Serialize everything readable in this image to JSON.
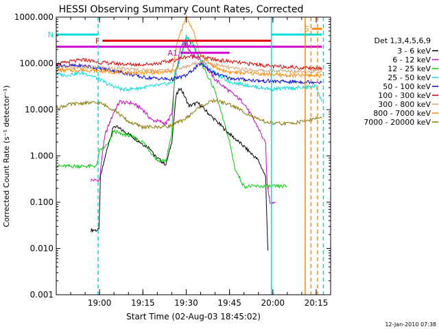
{
  "chart_data": {
    "type": "line",
    "title": "HESSI Observing Summary Count Rates, Corrected",
    "xlabel": "Start Time (02-Aug-03 18:45:02)",
    "ylabel": "Corrected Count Rate (s⁻¹ detector⁻¹)",
    "footer": "12-Jan-2010 07:38",
    "y_scale": "log",
    "ylim": [
      0.001,
      1000
    ],
    "xlim_minutes_from_start": [
      0,
      95
    ],
    "y_ticks": [
      "0.001",
      "0.010",
      "0.100",
      "1.000",
      "10.000",
      "100.000",
      "1000.000"
    ],
    "y_tick_values": [
      0.001,
      0.01,
      0.1,
      1,
      10,
      100,
      1000
    ],
    "x_ticks": [
      "19:00",
      "19:15",
      "19:30",
      "19:45",
      "20:00",
      "20:15"
    ],
    "x_tick_values": [
      15,
      30,
      45,
      60,
      75,
      90
    ],
    "legend_title": "Det 1,3,4,5,6,9",
    "legend_position": "right",
    "series": [
      {
        "name": "3 - 6 keV",
        "color": "#000000",
        "x": [
          12,
          14.8,
          15.3,
          18,
          20,
          25,
          30,
          33,
          34,
          35,
          38,
          40,
          41.5,
          43,
          46,
          49,
          55,
          60,
          65,
          70,
          72.5,
          73,
          73.3
        ],
        "y": [
          0.025,
          0.025,
          0.35,
          1.8,
          4.5,
          3.0,
          1.8,
          1.4,
          1.0,
          0.9,
          0.65,
          2.0,
          20,
          30,
          12,
          14,
          6,
          3.0,
          1.6,
          0.8,
          0.35,
          0.03,
          0.009
        ]
      },
      {
        "name": "6 - 12 keV",
        "color": "#cc00cc",
        "x": [
          12,
          15,
          16,
          17,
          20,
          22,
          24,
          26,
          28,
          30,
          33,
          36,
          38,
          40,
          41,
          43,
          45,
          47,
          50,
          55,
          60,
          65,
          70,
          72.5,
          73,
          74,
          76
        ],
        "y": [
          0.3,
          0.3,
          1.2,
          3.0,
          9,
          15,
          14,
          14,
          12,
          10,
          6,
          5.5,
          5,
          8,
          40,
          220,
          260,
          160,
          120,
          45,
          25,
          14,
          4,
          1.8,
          0.25,
          0.1,
          0.1
        ]
      },
      {
        "name": "12 - 25 keV",
        "color": "#00cc00",
        "x": [
          0,
          12,
          14,
          15,
          18,
          20,
          22,
          25,
          30,
          35,
          38,
          40,
          41,
          42,
          43,
          45,
          47,
          50,
          55,
          60,
          62,
          65,
          70,
          72,
          75,
          78,
          80
        ],
        "y": [
          0.6,
          0.6,
          0.6,
          1.3,
          1.8,
          3.5,
          3.0,
          2.8,
          2.0,
          0.8,
          0.8,
          3.0,
          60,
          90,
          120,
          350,
          300,
          110,
          25,
          2.0,
          0.5,
          0.22,
          0.22,
          0.22,
          0.22,
          0.22,
          0.22
        ]
      },
      {
        "name": "25 - 50 keV",
        "color": "#00dddd",
        "x": [
          0,
          3,
          6,
          9,
          12,
          15,
          18,
          20,
          23,
          26,
          30,
          33,
          36,
          40,
          42,
          45,
          48,
          50,
          55,
          60,
          65,
          70,
          75,
          80,
          85,
          90,
          92
        ],
        "y": [
          60,
          55,
          60,
          62,
          55,
          45,
          35,
          32,
          27,
          28,
          30,
          32,
          34,
          38,
          80,
          400,
          200,
          120,
          60,
          40,
          35,
          30,
          28,
          29,
          30,
          32,
          15
        ]
      },
      {
        "name": "50 - 100 keV",
        "color": "#0000dd",
        "x": [
          0,
          10,
          20,
          30,
          40,
          45,
          50,
          55,
          60,
          70,
          80,
          92
        ],
        "y": [
          90,
          88,
          70,
          50,
          45,
          55,
          100,
          60,
          48,
          42,
          40,
          40
        ]
      },
      {
        "name": "100 - 300 keV",
        "color": "#dd0000",
        "x": [
          0,
          5,
          10,
          15,
          20,
          25,
          30,
          35,
          40,
          45,
          50,
          55,
          60,
          65,
          70,
          75,
          80,
          85,
          92
        ],
        "y": [
          95,
          110,
          120,
          105,
          100,
          95,
          95,
          100,
          115,
          140,
          140,
          120,
          110,
          100,
          95,
          85,
          85,
          80,
          80
        ]
      },
      {
        "name": "300 - 800 keV",
        "color": "#d4a373",
        "x": [
          0,
          10,
          20,
          30,
          40,
          45,
          50,
          55,
          60,
          70,
          80,
          92
        ],
        "y": [
          80,
          82,
          78,
          72,
          70,
          85,
          110,
          95,
          80,
          70,
          68,
          68
        ]
      },
      {
        "name": "800 - 7000 keV",
        "color": "#ff8800",
        "x": [
          0,
          10,
          20,
          30,
          40,
          42,
          45,
          47,
          50,
          55,
          60,
          70,
          80,
          92
        ],
        "y": [
          70,
          72,
          65,
          62,
          65,
          300,
          1000,
          600,
          150,
          80,
          65,
          60,
          55,
          55
        ]
      },
      {
        "name": "7000 - 20000 keV",
        "color": "#887700",
        "x": [
          0,
          5,
          10,
          15,
          20,
          25,
          30,
          35,
          40,
          45,
          50,
          55,
          60,
          65,
          70,
          75,
          80,
          85,
          90,
          92
        ],
        "y": [
          11,
          13,
          14,
          14,
          10,
          5.5,
          4.2,
          4.2,
          4.5,
          6.5,
          12,
          16,
          13,
          9,
          6,
          5,
          5,
          5.5,
          6.5,
          6.5
        ]
      }
    ],
    "annotations": [
      {
        "label": "N",
        "color": "#00dddd",
        "kind": "bar",
        "x": [
          -2,
          14.5
        ],
        "y": 420
      },
      {
        "label": "",
        "color": "#00dddd",
        "kind": "bar",
        "x": [
          74.5,
          92
        ],
        "y": 420
      },
      {
        "label": "F",
        "color": "#dd0000",
        "kind": "bar",
        "x": [
          16,
          74.5
        ],
        "y": 310
      },
      {
        "label": "",
        "color": "#cc00cc",
        "kind": "bar",
        "x": [
          -2,
          92
        ],
        "y": 230
      },
      {
        "label": "A1",
        "color": "#cc00cc",
        "kind": "bar",
        "x": [
          43,
          60
        ],
        "y": 170
      },
      {
        "label": "S",
        "color": "#ff8800",
        "kind": "bar",
        "x": [
          88.5,
          92
        ],
        "y": 560
      },
      {
        "label": "A0",
        "color": "#cc00cc",
        "kind": "marker",
        "x": [
          45
        ],
        "y": 240
      }
    ],
    "vertical_lines": [
      {
        "x": 14.5,
        "color": "#00dddd",
        "style": "dashed"
      },
      {
        "x": 74.5,
        "color": "#00dddd",
        "style": "solid"
      },
      {
        "x": 86.2,
        "color": "#ff8800",
        "style": "solid"
      },
      {
        "x": 88.2,
        "color": "#ff8800",
        "style": "dashed"
      },
      {
        "x": 90.5,
        "color": "#ff8800",
        "style": "dashed"
      },
      {
        "x": 92.5,
        "color": "#00dddd",
        "style": "dashed"
      }
    ]
  }
}
